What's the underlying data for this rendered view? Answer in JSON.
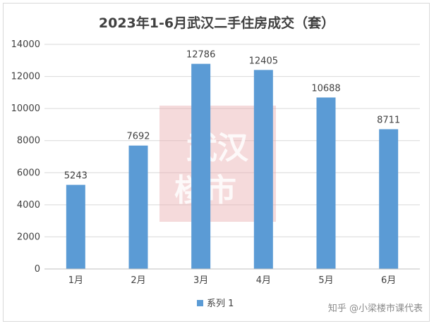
{
  "chart_data": {
    "type": "bar",
    "title": "2023年1-6月武汉二手住房成交（套）",
    "categories": [
      "1月",
      "2月",
      "3月",
      "4月",
      "5月",
      "6月"
    ],
    "series": [
      {
        "name": "系列 1",
        "values": [
          5243,
          7692,
          12786,
          12405,
          10688,
          8711
        ]
      }
    ],
    "ylim": [
      0,
      14000
    ],
    "yticks": [
      0,
      2000,
      4000,
      6000,
      8000,
      10000,
      12000,
      14000
    ],
    "grid": true,
    "legend_position": "bottom",
    "bar_color": "#5b9bd5",
    "data_labels": true
  },
  "watermark": {
    "stamp_lines": [
      "武汉",
      "楼市"
    ],
    "stamp_color": "#e8aeb0",
    "footer_text": "知乎 @小梁楼市课代表"
  }
}
